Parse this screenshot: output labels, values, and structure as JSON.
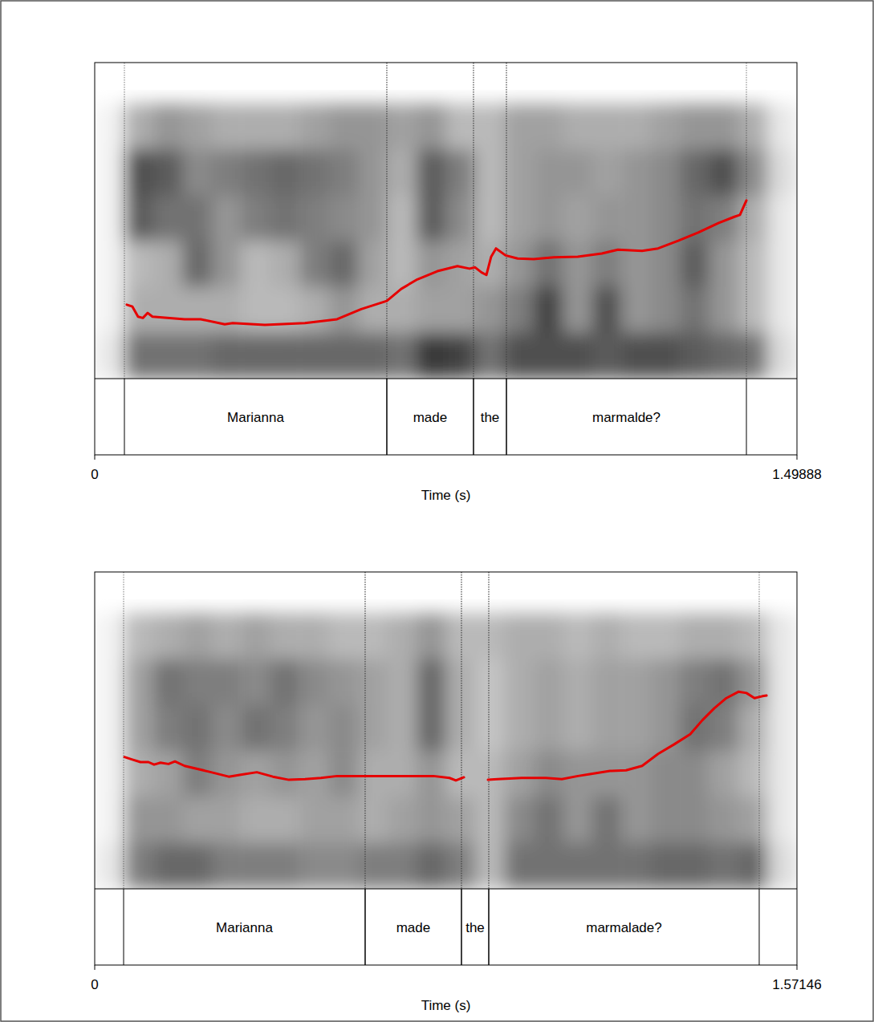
{
  "chart_data": [
    {
      "type": "line",
      "x": [
        0.0685,
        0.0805,
        0.0925,
        0.1028,
        0.1131,
        0.1233,
        0.1919,
        0.2261,
        0.2775,
        0.2946,
        0.3632,
        0.4488,
        0.5173,
        0.5687,
        0.6235,
        0.6543,
        0.6886,
        0.7314,
        0.7742,
        0.8,
        0.812,
        0.8257,
        0.836,
        0.8462,
        0.8565,
        0.877,
        0.9027,
        0.937,
        0.9798,
        1.0312,
        1.0826,
        1.1168,
        1.1682,
        1.2025,
        1.2453,
        1.2881,
        1.331,
        1.3652,
        1.3772,
        1.391
      ],
      "series": [
        {
          "color": "#e60000",
          "values": [
            117,
            114,
            98,
            96,
            104,
            98,
            94,
            94,
            86,
            88,
            85,
            88,
            94,
            110,
            123,
            142,
            157,
            170,
            178,
            174,
            176,
            168,
            164,
            193,
            206,
            195,
            190,
            189,
            192,
            193,
            198,
            204,
            202,
            206,
            218,
            231,
            246,
            256,
            259,
            282
          ]
        }
      ],
      "xlim": [
        0,
        1.49888
      ],
      "xticks": [
        0,
        1.49888
      ],
      "ylim": [
        0,
        500
      ],
      "tick_labels": "x",
      "x_label": "Time (s)",
      "intervals": [
        {
          "label": "Marianna",
          "start": 0.0634,
          "end": 0.6235
        },
        {
          "label": "made",
          "start": 0.6235,
          "end": 0.8085
        },
        {
          "label": "the",
          "start": 0.8085,
          "end": 0.8788
        },
        {
          "label": "marmalde?",
          "start": 0.8788,
          "end": 1.391
        }
      ],
      "spectrogram": {
        "cells": [
          [
            0.05,
            0.35,
            0.45,
            0.4,
            0.35,
            0.35,
            0.35,
            0.4,
            0.45,
            0.45,
            0.4,
            0.45,
            0.3,
            0.3,
            0.4,
            0.4,
            0.35,
            0.35,
            0.35,
            0.4,
            0.45,
            0.45,
            0.35,
            0.1
          ],
          [
            0.05,
            0.75,
            0.7,
            0.5,
            0.55,
            0.6,
            0.65,
            0.6,
            0.55,
            0.45,
            0.35,
            0.7,
            0.55,
            0.3,
            0.4,
            0.45,
            0.45,
            0.4,
            0.45,
            0.5,
            0.65,
            0.75,
            0.5,
            0.15
          ],
          [
            0.05,
            0.7,
            0.6,
            0.6,
            0.45,
            0.55,
            0.6,
            0.55,
            0.5,
            0.45,
            0.3,
            0.7,
            0.5,
            0.3,
            0.4,
            0.45,
            0.4,
            0.45,
            0.45,
            0.5,
            0.6,
            0.55,
            0.35,
            0.1
          ],
          [
            0.05,
            0.3,
            0.35,
            0.65,
            0.45,
            0.3,
            0.35,
            0.55,
            0.65,
            0.4,
            0.3,
            0.45,
            0.4,
            0.35,
            0.45,
            0.6,
            0.45,
            0.55,
            0.45,
            0.5,
            0.7,
            0.45,
            0.3,
            0.1
          ],
          [
            0.05,
            0.35,
            0.35,
            0.35,
            0.35,
            0.3,
            0.3,
            0.35,
            0.45,
            0.35,
            0.35,
            0.4,
            0.4,
            0.45,
            0.55,
            0.8,
            0.45,
            0.75,
            0.45,
            0.5,
            0.6,
            0.45,
            0.3,
            0.1
          ],
          [
            0.1,
            0.6,
            0.6,
            0.6,
            0.65,
            0.65,
            0.65,
            0.65,
            0.65,
            0.65,
            0.6,
            0.85,
            0.8,
            0.6,
            0.75,
            0.75,
            0.75,
            0.7,
            0.75,
            0.75,
            0.7,
            0.65,
            0.6,
            0.15
          ]
        ]
      }
    },
    {
      "type": "line",
      "x": [
        0.0665,
        0.0844,
        0.1024,
        0.1203,
        0.1329,
        0.1473,
        0.1652,
        0.1796,
        0.2012,
        0.255,
        0.2999,
        0.3269,
        0.3628,
        0.3987,
        0.4346,
        0.4706,
        0.5065,
        0.5424,
        0.5963,
        0.6502,
        0.704,
        0.7579,
        0.7938,
        0.8082,
        0.8262,
        0.853,
        0.88,
        0.9016,
        0.9555,
        1.0094,
        1.0453,
        1.0812,
        1.1081,
        1.153,
        1.189,
        1.2249,
        1.2608,
        1.2967,
        1.3326,
        1.3596,
        1.3865,
        1.4135,
        1.4404,
        1.4584,
        1.4764,
        1.4943,
        1.5033
      ],
      "series": [
        {
          "color": "#e60000",
          "values": [
            208,
            204,
            200,
            200,
            196,
            199,
            197,
            201,
            194,
            185,
            177,
            180,
            184,
            177,
            172,
            173,
            175,
            178,
            178,
            178,
            178,
            178,
            175,
            171,
            176,
            null,
            172,
            173,
            175,
            175,
            173,
            178,
            181,
            186,
            187,
            194,
            213,
            228,
            244,
            266,
            285,
            301,
            311,
            309,
            301,
            304,
            305
          ]
        }
      ],
      "xlim": [
        0,
        1.57146
      ],
      "xticks": [
        0,
        1.57146
      ],
      "ylim": [
        0,
        500
      ],
      "tick_labels": "x",
      "x_label": "Time (s)",
      "intervals": [
        {
          "label": "Marianna",
          "start": 0.0647,
          "end": 0.6052
        },
        {
          "label": "made",
          "start": 0.6052,
          "end": 0.8207
        },
        {
          "label": "the",
          "start": 0.8207,
          "end": 0.8818
        },
        {
          "label": "marmalade?",
          "start": 0.8818,
          "end": 1.487
        }
      ],
      "spectrogram": {
        "cells": [
          [
            0.05,
            0.3,
            0.35,
            0.4,
            0.35,
            0.4,
            0.35,
            0.35,
            0.3,
            0.3,
            0.35,
            0.45,
            0.3,
            0.3,
            0.35,
            0.35,
            0.3,
            0.35,
            0.3,
            0.3,
            0.35,
            0.35,
            0.3,
            0.1
          ],
          [
            0.05,
            0.4,
            0.6,
            0.55,
            0.55,
            0.5,
            0.6,
            0.5,
            0.45,
            0.4,
            0.35,
            0.65,
            0.35,
            0.25,
            0.35,
            0.4,
            0.35,
            0.4,
            0.4,
            0.45,
            0.55,
            0.6,
            0.45,
            0.1
          ],
          [
            0.05,
            0.4,
            0.55,
            0.6,
            0.5,
            0.6,
            0.55,
            0.45,
            0.5,
            0.4,
            0.35,
            0.65,
            0.35,
            0.25,
            0.35,
            0.4,
            0.35,
            0.4,
            0.4,
            0.45,
            0.6,
            0.55,
            0.35,
            0.1
          ],
          [
            0.05,
            0.35,
            0.4,
            0.55,
            0.45,
            0.4,
            0.45,
            0.4,
            0.5,
            0.35,
            0.35,
            0.45,
            0.3,
            0.3,
            0.4,
            0.5,
            0.45,
            0.45,
            0.45,
            0.5,
            0.5,
            0.4,
            0.3,
            0.1
          ],
          [
            0.05,
            0.45,
            0.45,
            0.4,
            0.4,
            0.35,
            0.35,
            0.4,
            0.4,
            0.35,
            0.4,
            0.45,
            0.4,
            0.3,
            0.5,
            0.6,
            0.45,
            0.6,
            0.45,
            0.5,
            0.5,
            0.45,
            0.4,
            0.1
          ],
          [
            0.1,
            0.55,
            0.65,
            0.65,
            0.55,
            0.55,
            0.55,
            0.5,
            0.5,
            0.55,
            0.55,
            0.65,
            0.55,
            0.3,
            0.6,
            0.6,
            0.6,
            0.6,
            0.6,
            0.65,
            0.65,
            0.6,
            0.65,
            0.15
          ]
        ]
      }
    }
  ]
}
